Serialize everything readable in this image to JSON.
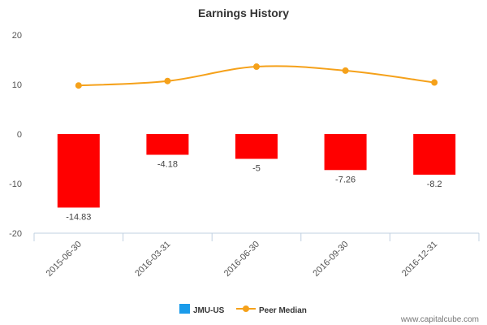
{
  "chart_data": {
    "type": "bar",
    "title": "Earnings History",
    "categories": [
      "2015-06-30",
      "2016-03-31",
      "2016-06-30",
      "2016-09-30",
      "2016-12-31"
    ],
    "series": [
      {
        "name": "JMU-US",
        "type": "bar",
        "values": [
          -14.83,
          -4.18,
          -5,
          -7.26,
          -8.2
        ],
        "data_labels": [
          "-14.83",
          "-4.18",
          "-5",
          "-7.26",
          "-8.2"
        ],
        "bar_color": "#ff0000",
        "legend_color": "#1a9bea"
      },
      {
        "name": "Peer Median",
        "type": "line",
        "values": [
          9.8,
          10.7,
          13.6,
          12.8,
          10.4
        ],
        "color": "#f5a11a"
      }
    ],
    "ylim": [
      -20,
      20
    ],
    "yticks": [
      20,
      10,
      0,
      -10,
      -20
    ],
    "grid": false,
    "legend_position": "bottom-center"
  },
  "watermark": "www.capitalcube.com"
}
